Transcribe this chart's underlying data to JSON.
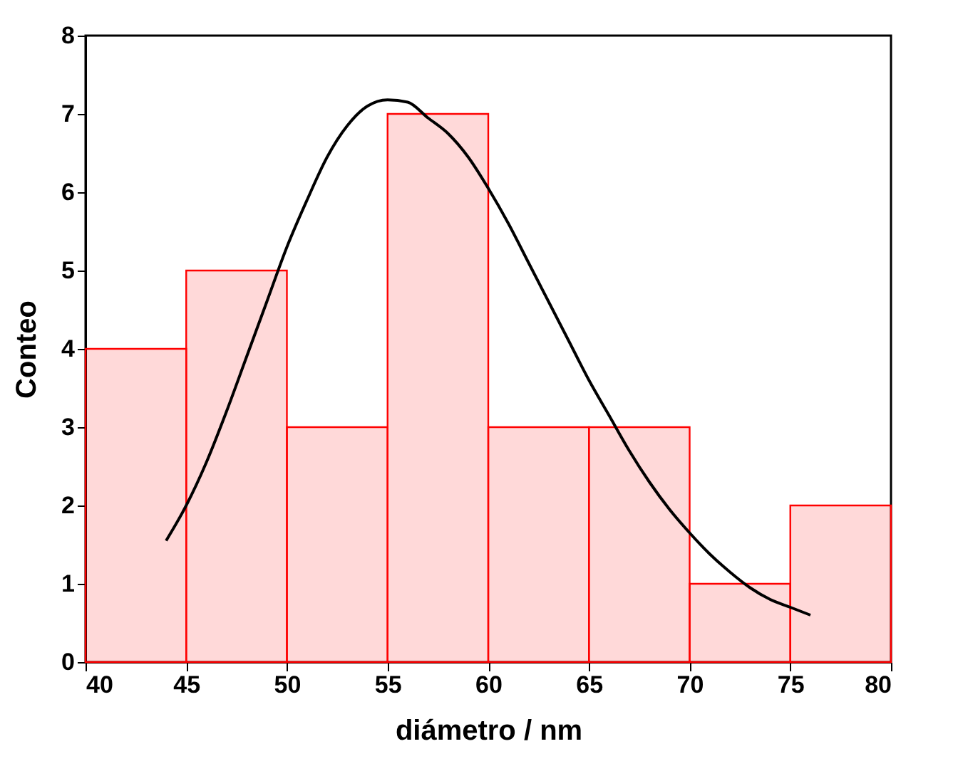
{
  "chart_data": {
    "type": "histogram",
    "xlabel": "diámetro / nm",
    "ylabel": "Conteo",
    "bins": [
      40,
      45,
      50,
      55,
      60,
      65,
      70,
      75,
      80
    ],
    "series": [
      {
        "color": "#ff0000",
        "values": [
          4,
          5,
          3,
          7,
          3,
          3,
          1,
          2
        ]
      },
      {
        "type": "line",
        "color": "#000000",
        "x": [
          44,
          45,
          46,
          47,
          48,
          49,
          50,
          51,
          52,
          53,
          54,
          55,
          56,
          57,
          58,
          59,
          60,
          61,
          62,
          63,
          64,
          65,
          66,
          67,
          68,
          69,
          70,
          71,
          72,
          73,
          74,
          75,
          76
        ],
        "values": [
          1.55,
          2.0,
          2.55,
          3.2,
          3.9,
          4.6,
          5.3,
          5.9,
          6.45,
          6.85,
          7.1,
          7.18,
          7.15,
          6.95,
          6.75,
          6.45,
          6.05,
          5.6,
          5.1,
          4.6,
          4.1,
          3.6,
          3.15,
          2.7,
          2.3,
          1.95,
          1.65,
          1.38,
          1.15,
          0.95,
          0.8,
          0.7,
          0.6
        ]
      }
    ],
    "xlim": [
      40,
      80
    ],
    "xticks": [
      40,
      45,
      50,
      55,
      60,
      65,
      70,
      75,
      80
    ],
    "ylim": [
      0,
      8
    ],
    "yticks": [
      0,
      1,
      2,
      3,
      4,
      5,
      6,
      7,
      8
    ],
    "grid": false
  }
}
